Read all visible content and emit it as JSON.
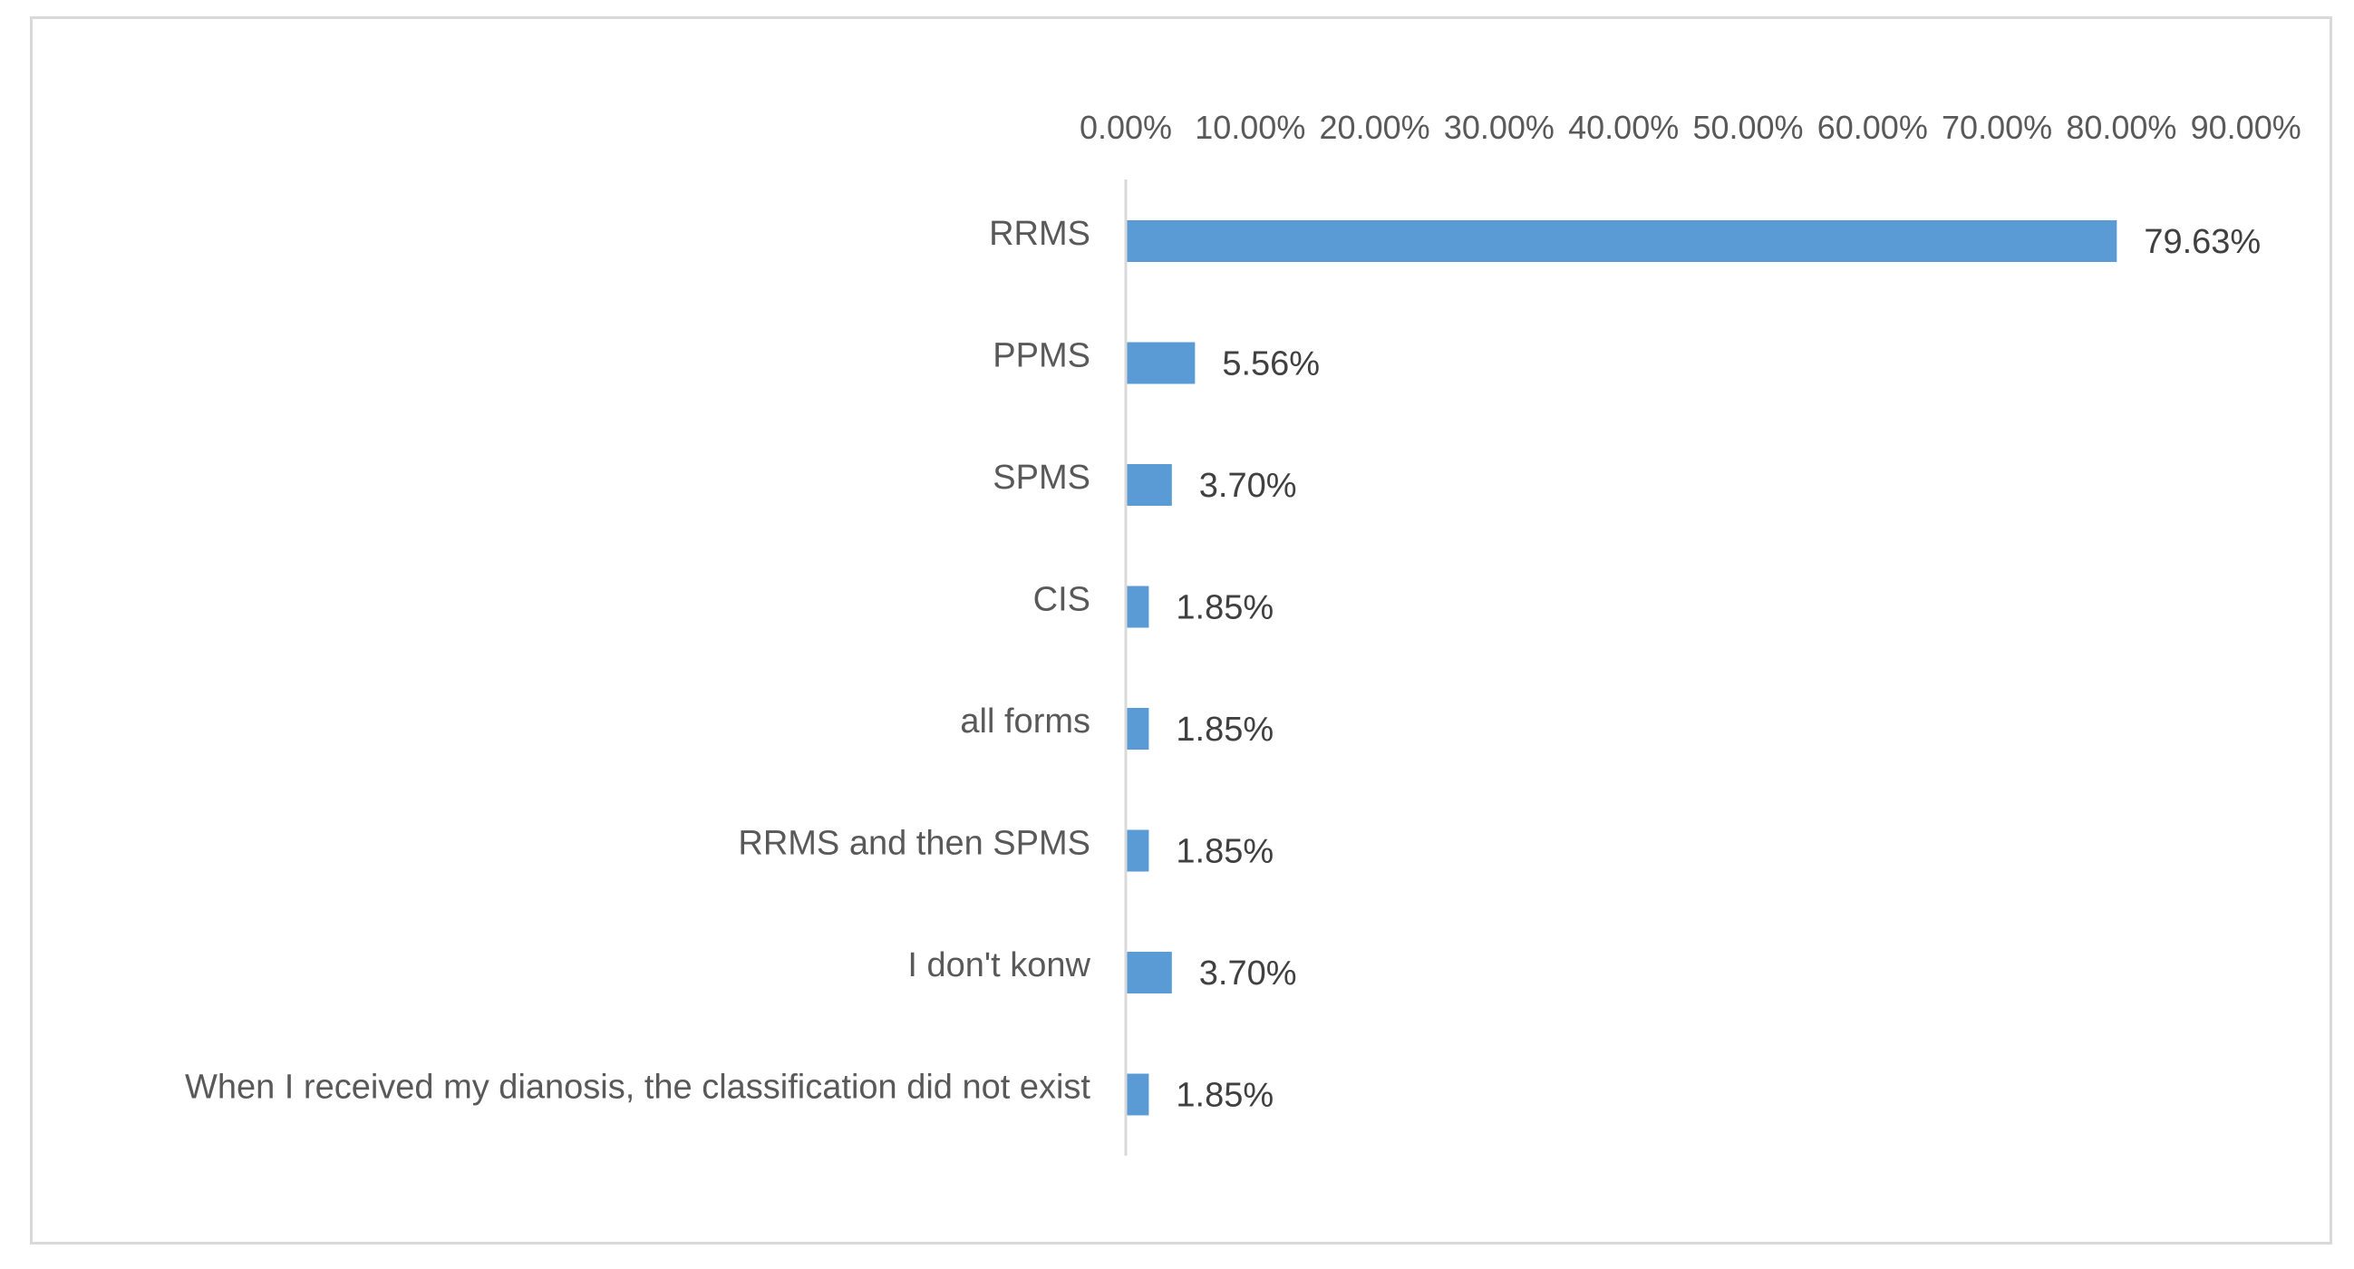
{
  "chart_data": {
    "type": "bar",
    "orientation": "horizontal",
    "x_axis_position": "top",
    "grid": false,
    "legend": "none",
    "xlim": [
      0,
      90
    ],
    "tick_values": [
      0,
      10,
      20,
      30,
      40,
      50,
      60,
      70,
      80,
      90
    ],
    "tick_labels": [
      "0.00%",
      "10.00%",
      "20.00%",
      "30.00%",
      "40.00%",
      "50.00%",
      "60.00%",
      "70.00%",
      "80.00%",
      "90.00%"
    ],
    "categories": [
      "RRMS",
      "PPMS",
      "SPMS",
      "CIS",
      "all forms",
      "RRMS and then SPMS",
      "I don't konw",
      "When I received my dianosis, the classification did not exist"
    ],
    "values": [
      79.63,
      5.56,
      3.7,
      1.85,
      1.85,
      1.85,
      3.7,
      1.85
    ],
    "value_labels": [
      "79.63%",
      "5.56%",
      "3.70%",
      "1.85%",
      "1.85%",
      "1.85%",
      "3.70%",
      "1.85%"
    ],
    "bar_color": "#5b9bd5",
    "axis_color": "#d9d9d9",
    "text_color": "#595959"
  }
}
